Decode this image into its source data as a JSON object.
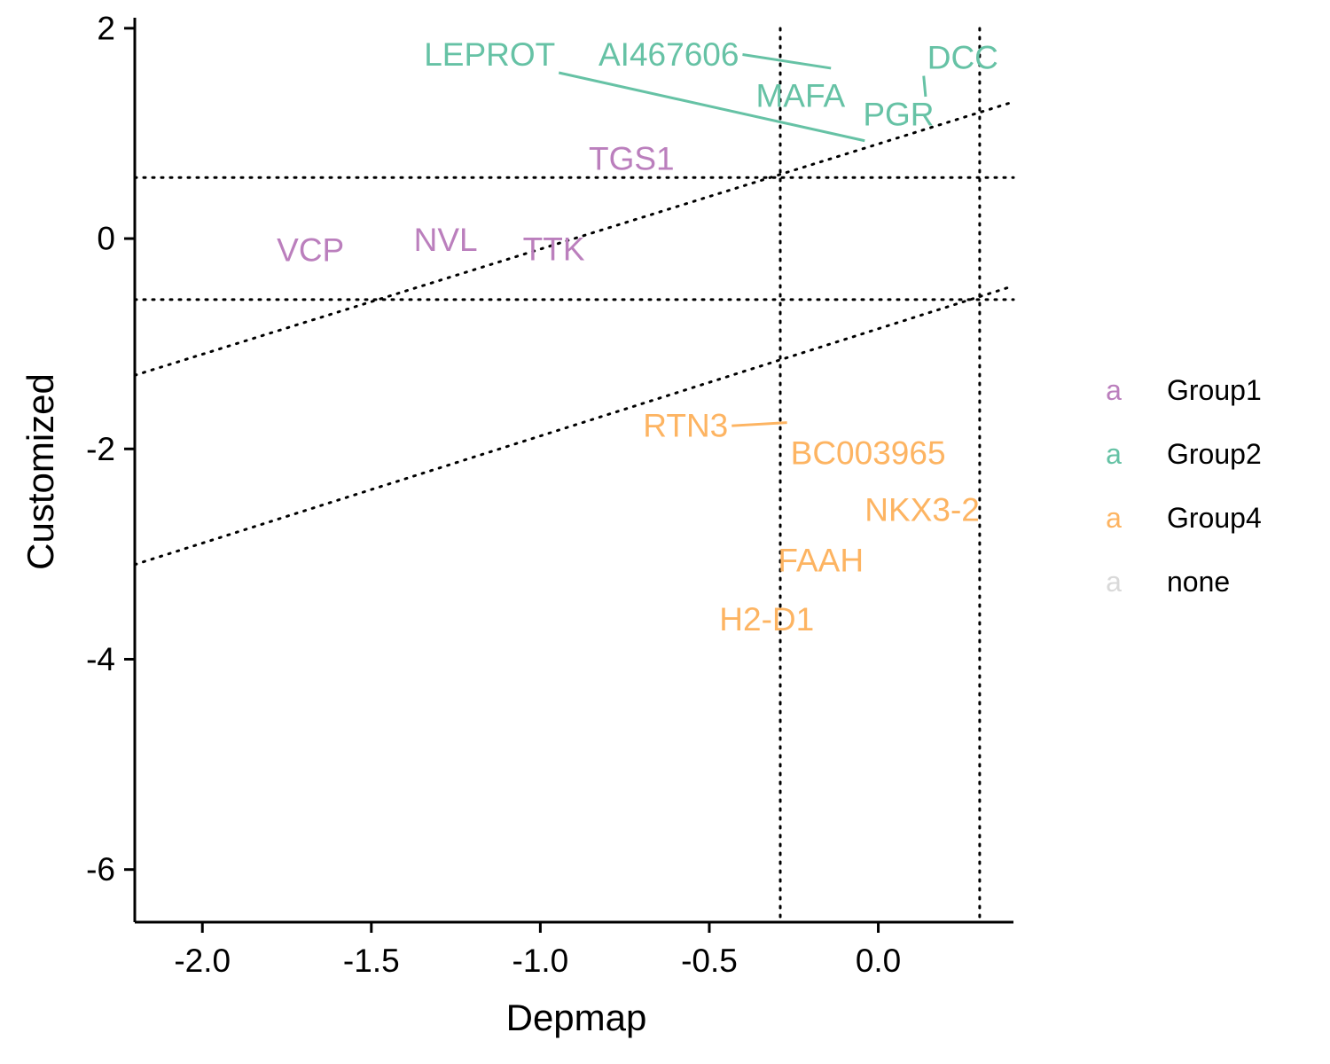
{
  "chart_data": {
    "type": "scatter",
    "xlabel": "Depmap",
    "ylabel": "Customized",
    "xlim": [
      -2.2,
      0.4
    ],
    "ylim": [
      -6.5,
      2.1
    ],
    "x_ticks": [
      {
        "value": -2.0,
        "label": "-2.0"
      },
      {
        "value": -1.5,
        "label": "-1.5"
      },
      {
        "value": -1.0,
        "label": "-1.0"
      },
      {
        "value": -0.5,
        "label": "-0.5"
      },
      {
        "value": 0.0,
        "label": "0.0"
      }
    ],
    "y_ticks": [
      {
        "value": 2,
        "label": "2"
      },
      {
        "value": 0,
        "label": "0"
      },
      {
        "value": -2,
        "label": "-2"
      },
      {
        "value": -4,
        "label": "-4"
      },
      {
        "value": -6,
        "label": "-6"
      }
    ],
    "grid": false,
    "reference_lines": {
      "vertical_x": [
        -0.29,
        0.3
      ],
      "horizontal_y": [
        0.58,
        -0.58
      ],
      "diagonal": [
        {
          "x1": -2.2,
          "y1": -1.3,
          "x2": 0.4,
          "y2": 1.3
        },
        {
          "x1": -2.2,
          "y1": -3.1,
          "x2": 0.4,
          "y2": -0.45
        }
      ]
    },
    "legend": {
      "position": "right",
      "key_symbol": "a",
      "entries": [
        {
          "name": "Group1",
          "color": "#bb7fbd"
        },
        {
          "name": "Group2",
          "color": "#66c2a5"
        },
        {
          "name": "Group4",
          "color": "#fdb462"
        },
        {
          "name": "none",
          "color": "#d9d9d9"
        }
      ]
    },
    "labels": [
      {
        "text": "LEPROT",
        "group": "Group2",
        "x": -1.15,
        "y": 1.75,
        "px": -0.04,
        "py": 0.93
      },
      {
        "text": "AI467606",
        "group": "Group2",
        "x": -0.62,
        "y": 1.75,
        "px": -0.14,
        "py": 1.62
      },
      {
        "text": "MAFA",
        "group": "Group2",
        "x": -0.23,
        "y": 1.36
      },
      {
        "text": "DCC",
        "group": "Group2",
        "x": 0.25,
        "y": 1.72,
        "px": 0.14,
        "py": 1.35
      },
      {
        "text": "PGR",
        "group": "Group2",
        "x": 0.06,
        "y": 1.18
      },
      {
        "text": "TGS1",
        "group": "Group1",
        "x": -0.73,
        "y": 0.76
      },
      {
        "text": "VCP",
        "group": "Group1",
        "x": -1.68,
        "y": -0.11
      },
      {
        "text": "NVL",
        "group": "Group1",
        "x": -1.28,
        "y": -0.01
      },
      {
        "text": "TTK",
        "group": "Group1",
        "x": -0.96,
        "y": -0.1
      },
      {
        "text": "RTN3",
        "group": "Group4",
        "x": -0.57,
        "y": -1.78,
        "px": -0.27,
        "py": -1.75
      },
      {
        "text": "BC003965",
        "group": "Group4",
        "x": -0.03,
        "y": -2.04
      },
      {
        "text": "NKX3-2",
        "group": "Group4",
        "x": 0.13,
        "y": -2.58
      },
      {
        "text": "FAAH",
        "group": "Group4",
        "x": -0.17,
        "y": -3.06
      },
      {
        "text": "H2-D1",
        "group": "Group4",
        "x": -0.33,
        "y": -3.62
      }
    ]
  }
}
